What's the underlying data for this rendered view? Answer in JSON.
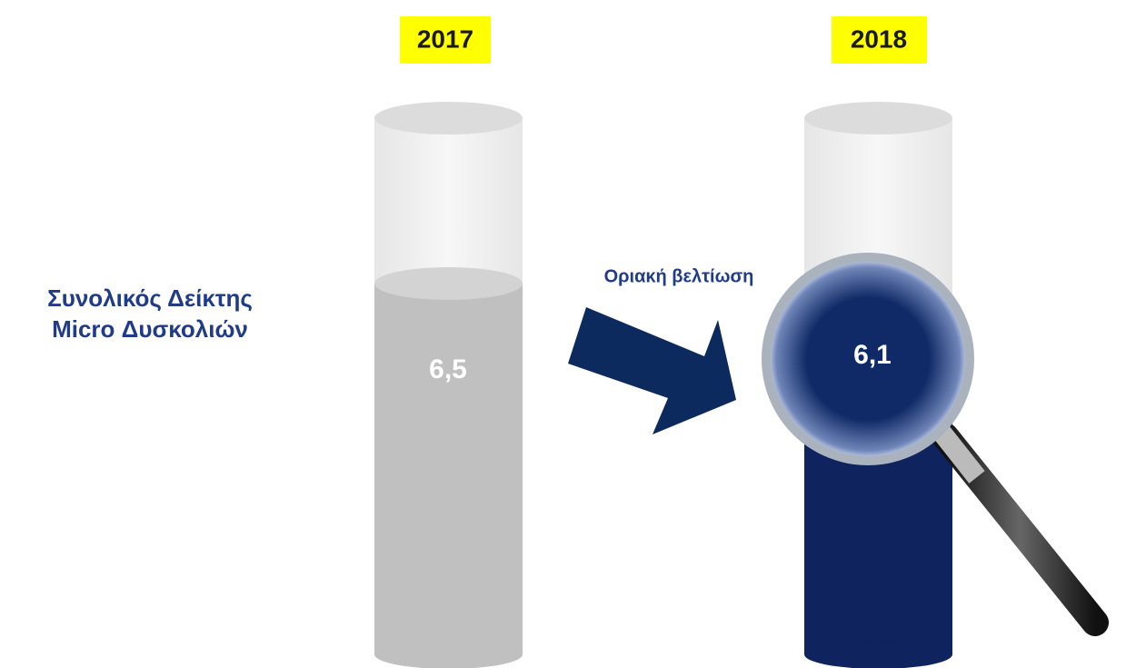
{
  "title_lines": [
    "Συνολικός Δείκτης",
    "Micro Δυσκολιών"
  ],
  "columns": [
    {
      "year": "2017",
      "value": "6,5"
    },
    {
      "year": "2018",
      "value": "6,1"
    }
  ],
  "annotation": "Οριακή βελτίωση"
}
